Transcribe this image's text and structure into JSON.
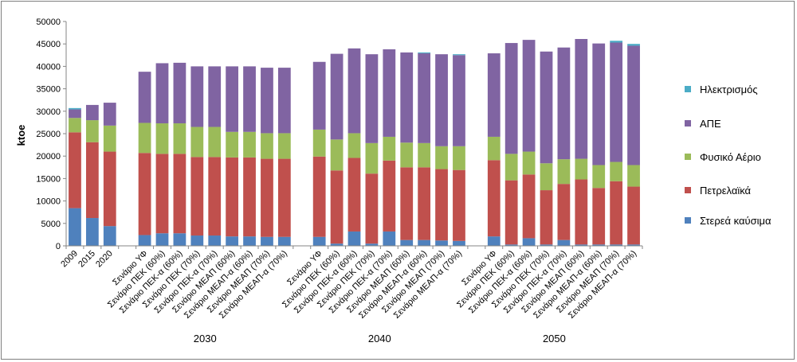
{
  "chart_data": {
    "type": "bar",
    "stacked": true,
    "ylabel": "ktoe",
    "ylim": [
      0,
      50000
    ],
    "yticks": [
      0,
      5000,
      10000,
      15000,
      20000,
      25000,
      30000,
      35000,
      40000,
      45000,
      50000
    ],
    "grid": false,
    "legend_position": "right",
    "group_labels": [
      "2030",
      "2040",
      "2050"
    ],
    "categories": [
      "2009",
      "2015",
      "2020",
      "",
      "Σενάριο ΥΦ",
      "Σενάριο ΠΕΚ (60%)",
      "Σενάριο ΠΕΚ-α (60%)",
      "Σενάριο ΠΕΚ (70%)",
      "Σενάριο ΠΕΚ-α (70%)",
      "Σενάριο ΜΕΑΠ (60%)",
      "Σενάριο ΜΕΑΠ-α (60%)",
      "Σενάριο ΜΕΑΠ (70%)",
      "Σενάριο ΜΕΑΠ-α (70%)",
      "",
      "Σενάριο ΥΦ",
      "Σενάριο ΠΕΚ (60%)",
      "Σενάριο ΠΕΚ-α (60%)",
      "Σενάριο ΠΕΚ (70%)",
      "Σενάριο ΠΕΚ-α (70%)",
      "Σενάριο ΜΕΑΠ (60%)",
      "Σενάριο ΜΕΑΠ-α (60%)",
      "Σενάριο ΜΕΑΠ (70%)",
      "Σενάριο ΜΕΑΠ-α (70%)",
      "",
      "Σενάριο ΥΦ",
      "Σενάριο ΠΕΚ (60%)",
      "Σενάριο ΠΕΚ-α (60%)",
      "Σενάριο ΠΕΚ (70%)",
      "Σενάριο ΠΕΚ-α (70%)",
      "Σενάριο ΜΕΑΠ (60%)",
      "Σενάριο ΜΕΑΠ-α (60%)",
      "Σενάριο ΜΕΑΠ (70%)",
      "Σενάριο ΜΕΑΠ-α (70%)"
    ],
    "series": [
      {
        "name": "Στερεά καύσιμα",
        "color": "#4f81bd",
        "values": [
          8400,
          6200,
          4400,
          0,
          2400,
          2800,
          2800,
          2300,
          2300,
          2100,
          2100,
          2000,
          2000,
          0,
          2000,
          500,
          3200,
          500,
          3200,
          1300,
          1300,
          1200,
          1100,
          0,
          2100,
          300,
          1700,
          300,
          1300,
          300,
          300,
          300,
          300
        ]
      },
      {
        "name": "Πετρελαϊκά",
        "color": "#c0504d",
        "values": [
          16900,
          16900,
          16600,
          0,
          18300,
          17700,
          17700,
          17500,
          17500,
          17600,
          17600,
          17400,
          17400,
          0,
          17900,
          16300,
          16400,
          15600,
          15800,
          16200,
          16200,
          15900,
          15800,
          0,
          17000,
          14300,
          14200,
          12100,
          12500,
          14500,
          12600,
          14100,
          12900
        ]
      },
      {
        "name": "Φυσικό Αέριο",
        "color": "#9bbb59",
        "values": [
          3200,
          4900,
          5800,
          0,
          6700,
          6800,
          6800,
          6700,
          6700,
          5700,
          5700,
          5700,
          5700,
          0,
          6000,
          6900,
          5500,
          6800,
          5300,
          5500,
          5400,
          5100,
          5300,
          0,
          5200,
          5900,
          5100,
          6000,
          5500,
          4600,
          5100,
          4300,
          4800
        ]
      },
      {
        "name": "ΑΠΕ",
        "color": "#8064a2",
        "values": [
          1900,
          3400,
          5100,
          0,
          11400,
          13400,
          13500,
          13500,
          13500,
          14600,
          14600,
          14600,
          14600,
          0,
          15100,
          19100,
          18900,
          19800,
          19500,
          20100,
          20000,
          20500,
          20300,
          0,
          18600,
          24700,
          24900,
          24900,
          24900,
          26700,
          27100,
          26600,
          26600
        ]
      },
      {
        "name": "Ηλεκτρισμός",
        "color": "#4bacc6",
        "values": [
          300,
          0,
          0,
          0,
          0,
          0,
          0,
          0,
          0,
          0,
          0,
          0,
          0,
          0,
          0,
          0,
          0,
          0,
          0,
          0,
          200,
          0,
          200,
          0,
          0,
          0,
          0,
          0,
          0,
          0,
          0,
          400,
          400
        ]
      }
    ],
    "legend_order": [
      "Ηλεκτρισμός",
      "ΑΠΕ",
      "Φυσικό Αέριο",
      "Πετρελαϊκά",
      "Στερεά καύσιμα"
    ]
  }
}
